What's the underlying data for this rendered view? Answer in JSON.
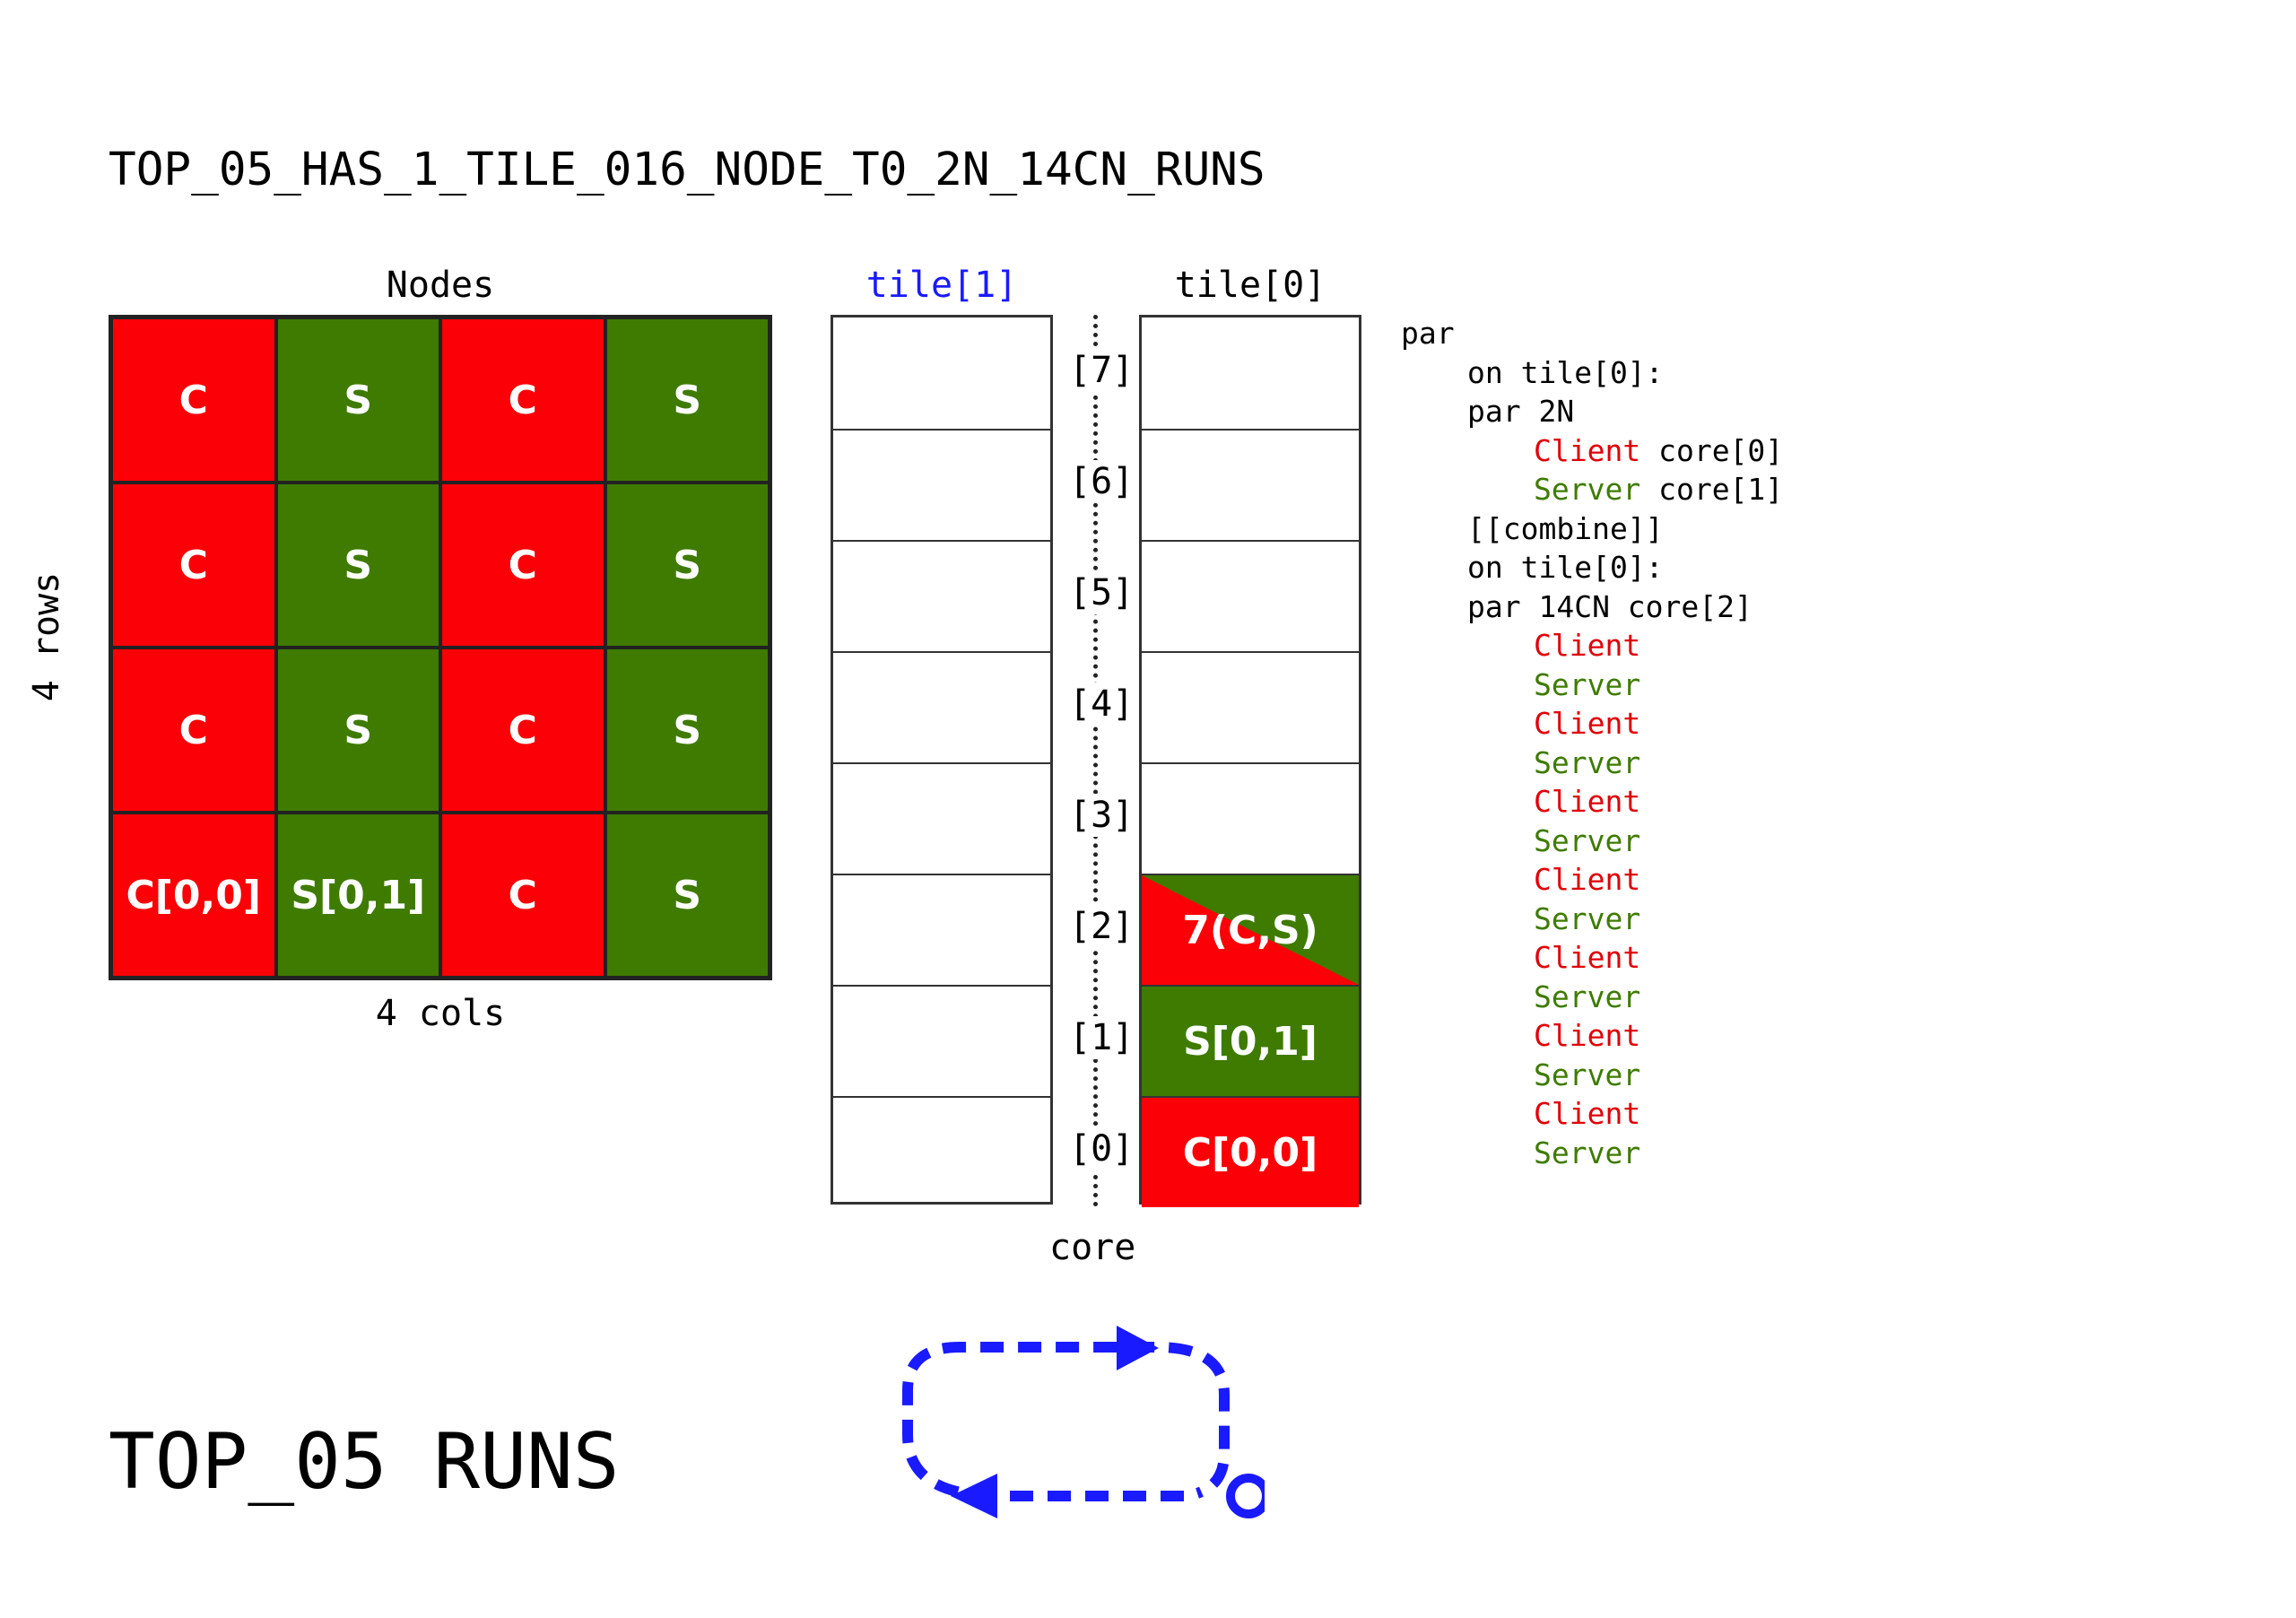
{
  "title": "TOP_05_HAS_1_TILE_016_NODE_T0_2N_14CN_RUNS",
  "footer_title": "TOP_05 RUNS",
  "colors": {
    "client": "#fb0007",
    "server": "#3e7b00",
    "tile1": "#1a1aff",
    "loop": "#1a1aff"
  },
  "grid": {
    "label": "Nodes",
    "rows_label": "4 rows",
    "cols_label": "4 cols",
    "rows": [
      [
        {
          "type": "C",
          "text": "C"
        },
        {
          "type": "S",
          "text": "S"
        },
        {
          "type": "C",
          "text": "C"
        },
        {
          "type": "S",
          "text": "S"
        }
      ],
      [
        {
          "type": "C",
          "text": "C"
        },
        {
          "type": "S",
          "text": "S"
        },
        {
          "type": "C",
          "text": "C"
        },
        {
          "type": "S",
          "text": "S"
        }
      ],
      [
        {
          "type": "C",
          "text": "C"
        },
        {
          "type": "S",
          "text": "S"
        },
        {
          "type": "C",
          "text": "C"
        },
        {
          "type": "S",
          "text": "S"
        }
      ],
      [
        {
          "type": "C",
          "text": "C[0,0]"
        },
        {
          "type": "S",
          "text": "S[0,1]"
        },
        {
          "type": "C",
          "text": "C"
        },
        {
          "type": "S",
          "text": "S"
        }
      ]
    ]
  },
  "tiles": {
    "tile1_label": "tile[1]",
    "tile0_label": "tile[0]",
    "core_label": "core",
    "core_indices": [
      "[7]",
      "[6]",
      "[5]",
      "[4]",
      "[3]",
      "[2]",
      "[1]",
      "[0]"
    ],
    "tile0_slots": [
      {
        "core": 2,
        "type": "CS",
        "text": "7(C,S)"
      },
      {
        "core": 1,
        "type": "S",
        "text": "S[0,1]"
      },
      {
        "core": 0,
        "type": "C",
        "text": "C[0,0]"
      }
    ]
  },
  "code": [
    {
      "indent": 0,
      "parts": [
        {
          "t": "par",
          "c": ""
        }
      ]
    },
    {
      "indent": 1,
      "parts": [
        {
          "t": "on tile[0]:",
          "c": ""
        }
      ]
    },
    {
      "indent": 1,
      "parts": [
        {
          "t": "par 2N",
          "c": ""
        }
      ]
    },
    {
      "indent": 2,
      "parts": [
        {
          "t": "Client",
          "c": "red"
        },
        {
          "t": " core[0]",
          "c": ""
        }
      ]
    },
    {
      "indent": 2,
      "parts": [
        {
          "t": "Server",
          "c": "green"
        },
        {
          "t": " core[1]",
          "c": ""
        }
      ]
    },
    {
      "indent": 1,
      "parts": [
        {
          "t": "[[combine]]",
          "c": ""
        }
      ]
    },
    {
      "indent": 1,
      "parts": [
        {
          "t": "on tile[0]:",
          "c": ""
        }
      ]
    },
    {
      "indent": 1,
      "parts": [
        {
          "t": "par 14CN core[2]",
          "c": ""
        }
      ]
    },
    {
      "indent": 2,
      "parts": [
        {
          "t": "Client",
          "c": "red"
        }
      ]
    },
    {
      "indent": 2,
      "parts": [
        {
          "t": "Server",
          "c": "green"
        }
      ]
    },
    {
      "indent": 2,
      "parts": [
        {
          "t": "Client",
          "c": "red"
        }
      ]
    },
    {
      "indent": 2,
      "parts": [
        {
          "t": "Server",
          "c": "green"
        }
      ]
    },
    {
      "indent": 2,
      "parts": [
        {
          "t": "Client",
          "c": "red"
        }
      ]
    },
    {
      "indent": 2,
      "parts": [
        {
          "t": "Server",
          "c": "green"
        }
      ]
    },
    {
      "indent": 2,
      "parts": [
        {
          "t": "Client",
          "c": "red"
        }
      ]
    },
    {
      "indent": 2,
      "parts": [
        {
          "t": "Server",
          "c": "green"
        }
      ]
    },
    {
      "indent": 2,
      "parts": [
        {
          "t": "Client",
          "c": "red"
        }
      ]
    },
    {
      "indent": 2,
      "parts": [
        {
          "t": "Server",
          "c": "green"
        }
      ]
    },
    {
      "indent": 2,
      "parts": [
        {
          "t": "Client",
          "c": "red"
        }
      ]
    },
    {
      "indent": 2,
      "parts": [
        {
          "t": "Server",
          "c": "green"
        }
      ]
    },
    {
      "indent": 2,
      "parts": [
        {
          "t": "Client",
          "c": "red"
        }
      ]
    },
    {
      "indent": 2,
      "parts": [
        {
          "t": "Server",
          "c": "green"
        }
      ]
    }
  ],
  "loop_icon": "dashed-loop-arrow-icon"
}
